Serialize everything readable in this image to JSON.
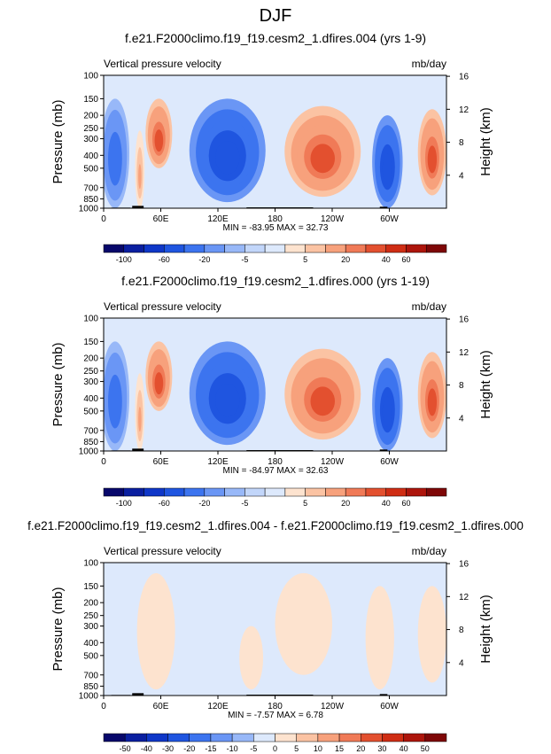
{
  "figure": {
    "title": "DJF",
    "background": "#ffffff"
  },
  "chart_data": [
    {
      "type": "heatmap",
      "panel_title": "f.e21.F2000climo.f19_f19.cesm2_1.dfires.004 (yrs 1-9)",
      "left_label": "Vertical pressure velocity",
      "right_label": "mb/day",
      "ylabel": "Pressure (mb)",
      "ylabel_right": "Height (km)",
      "y_ticks": [
        "100",
        "150",
        "200",
        "250",
        "300",
        "400",
        "500",
        "700",
        "850",
        "1000"
      ],
      "y_right_ticks": [
        "16",
        "12",
        "8",
        "4"
      ],
      "x_ticks": [
        "0",
        "60E",
        "120E",
        "180",
        "120W",
        "60W"
      ],
      "ylim": [
        1000,
        100
      ],
      "xlim": [
        0,
        360
      ],
      "stats": "MIN = -83.95  MAX = 32.73",
      "colorbar": {
        "levels": [
          -100,
          -80,
          -60,
          -40,
          -20,
          -10,
          -5,
          -2,
          2,
          5,
          10,
          20,
          30,
          40,
          60,
          80
        ],
        "labels": [
          "-100",
          "-60",
          "-20",
          "-5",
          "5",
          "20",
          "40",
          "60"
        ],
        "colors": [
          "#08086b",
          "#0a1fa0",
          "#0f37c8",
          "#1f55e0",
          "#3c74ef",
          "#6a96f5",
          "#98b8f8",
          "#c2d6fa",
          "#dde9fc",
          "#fde3cf",
          "#fbc3a3",
          "#f7a17c",
          "#f07a57",
          "#e3502f",
          "#cf2d14",
          "#ad150c",
          "#7e0707"
        ]
      },
      "features": [
        {
          "lon": 12,
          "lon_width": 30,
          "p_top": 150,
          "p_bot": 1000,
          "value": -30
        },
        {
          "lon": 38,
          "lon_width": 10,
          "p_top": 260,
          "p_bot": 1000,
          "value": 10
        },
        {
          "lon": 58,
          "lon_width": 28,
          "p_top": 150,
          "p_bot": 500,
          "value": 30
        },
        {
          "lon": 130,
          "lon_width": 80,
          "p_top": 150,
          "p_bot": 900,
          "value": -60
        },
        {
          "lon": 230,
          "lon_width": 80,
          "p_top": 170,
          "p_bot": 820,
          "value": 30
        },
        {
          "lon": 298,
          "lon_width": 32,
          "p_top": 200,
          "p_bot": 1000,
          "value": -55
        },
        {
          "lon": 345,
          "lon_width": 30,
          "p_top": 180,
          "p_bot": 800,
          "value": 32
        }
      ]
    },
    {
      "type": "heatmap",
      "panel_title": "f.e21.F2000climo.f19_f19.cesm2_1.dfires.000 (yrs 1-19)",
      "left_label": "Vertical pressure velocity",
      "right_label": "mb/day",
      "ylabel": "Pressure (mb)",
      "ylabel_right": "Height (km)",
      "y_ticks": [
        "100",
        "150",
        "200",
        "250",
        "300",
        "400",
        "500",
        "700",
        "850",
        "1000"
      ],
      "y_right_ticks": [
        "16",
        "12",
        "8",
        "4"
      ],
      "x_ticks": [
        "0",
        "60E",
        "120E",
        "180",
        "120W",
        "60W"
      ],
      "ylim": [
        1000,
        100
      ],
      "xlim": [
        0,
        360
      ],
      "stats": "MIN = -84.97  MAX = 32.63",
      "colorbar": {
        "levels": [
          -100,
          -80,
          -60,
          -40,
          -20,
          -10,
          -5,
          -2,
          2,
          5,
          10,
          20,
          30,
          40,
          60,
          80
        ],
        "labels": [
          "-100",
          "-60",
          "-20",
          "-5",
          "5",
          "20",
          "40",
          "60"
        ],
        "colors": [
          "#08086b",
          "#0a1fa0",
          "#0f37c8",
          "#1f55e0",
          "#3c74ef",
          "#6a96f5",
          "#98b8f8",
          "#c2d6fa",
          "#dde9fc",
          "#fde3cf",
          "#fbc3a3",
          "#f7a17c",
          "#f07a57",
          "#e3502f",
          "#cf2d14",
          "#ad150c",
          "#7e0707"
        ]
      },
      "features": [
        {
          "lon": 12,
          "lon_width": 30,
          "p_top": 150,
          "p_bot": 1000,
          "value": -30
        },
        {
          "lon": 38,
          "lon_width": 10,
          "p_top": 260,
          "p_bot": 1000,
          "value": 10
        },
        {
          "lon": 58,
          "lon_width": 28,
          "p_top": 150,
          "p_bot": 500,
          "value": 30
        },
        {
          "lon": 130,
          "lon_width": 80,
          "p_top": 150,
          "p_bot": 900,
          "value": -60
        },
        {
          "lon": 230,
          "lon_width": 80,
          "p_top": 170,
          "p_bot": 820,
          "value": 30
        },
        {
          "lon": 298,
          "lon_width": 32,
          "p_top": 200,
          "p_bot": 1000,
          "value": -55
        },
        {
          "lon": 345,
          "lon_width": 30,
          "p_top": 180,
          "p_bot": 800,
          "value": 32
        }
      ]
    },
    {
      "type": "heatmap",
      "panel_title": "f.e21.F2000climo.f19_f19.cesm2_1.dfires.004 - f.e21.F2000climo.f19_f19.cesm2_1.dfires.000",
      "left_label": "Vertical pressure velocity",
      "right_label": "mb/day",
      "ylabel": "Pressure (mb)",
      "ylabel_right": "Height (km)",
      "y_ticks": [
        "100",
        "150",
        "200",
        "250",
        "300",
        "400",
        "500",
        "700",
        "850",
        "1000"
      ],
      "y_right_ticks": [
        "16",
        "12",
        "8",
        "4"
      ],
      "x_ticks": [
        "0",
        "60E",
        "120E",
        "180",
        "120W",
        "60W"
      ],
      "ylim": [
        1000,
        100
      ],
      "xlim": [
        0,
        360
      ],
      "stats": "MIN = -7.57  MAX = 6.78",
      "colorbar": {
        "levels": [
          -50,
          -40,
          -30,
          -20,
          -15,
          -10,
          -5,
          0,
          5,
          10,
          15,
          20,
          30,
          40,
          50
        ],
        "labels": [
          "-50",
          "-40",
          "-30",
          "-20",
          "-15",
          "-10",
          "-5",
          "0",
          "5",
          "10",
          "15",
          "20",
          "30",
          "40",
          "50"
        ],
        "colors": [
          "#08086b",
          "#0a1fa0",
          "#0f37c8",
          "#1f55e0",
          "#3c74ef",
          "#6a96f5",
          "#98b8f8",
          "#dde9fc",
          "#fde3cf",
          "#fbc3a3",
          "#f7a17c",
          "#f07a57",
          "#e3502f",
          "#cf2d14",
          "#ad150c",
          "#7e0707"
        ]
      },
      "features": [
        {
          "lon": 55,
          "lon_width": 40,
          "p_top": 120,
          "p_bot": 900,
          "value": 2
        },
        {
          "lon": 155,
          "lon_width": 25,
          "p_top": 300,
          "p_bot": 900,
          "value": 2
        },
        {
          "lon": 210,
          "lon_width": 60,
          "p_top": 120,
          "p_bot": 700,
          "value": 2
        },
        {
          "lon": 290,
          "lon_width": 30,
          "p_top": 150,
          "p_bot": 900,
          "value": 2
        },
        {
          "lon": 345,
          "lon_width": 30,
          "p_top": 150,
          "p_bot": 800,
          "value": 2
        }
      ]
    }
  ]
}
